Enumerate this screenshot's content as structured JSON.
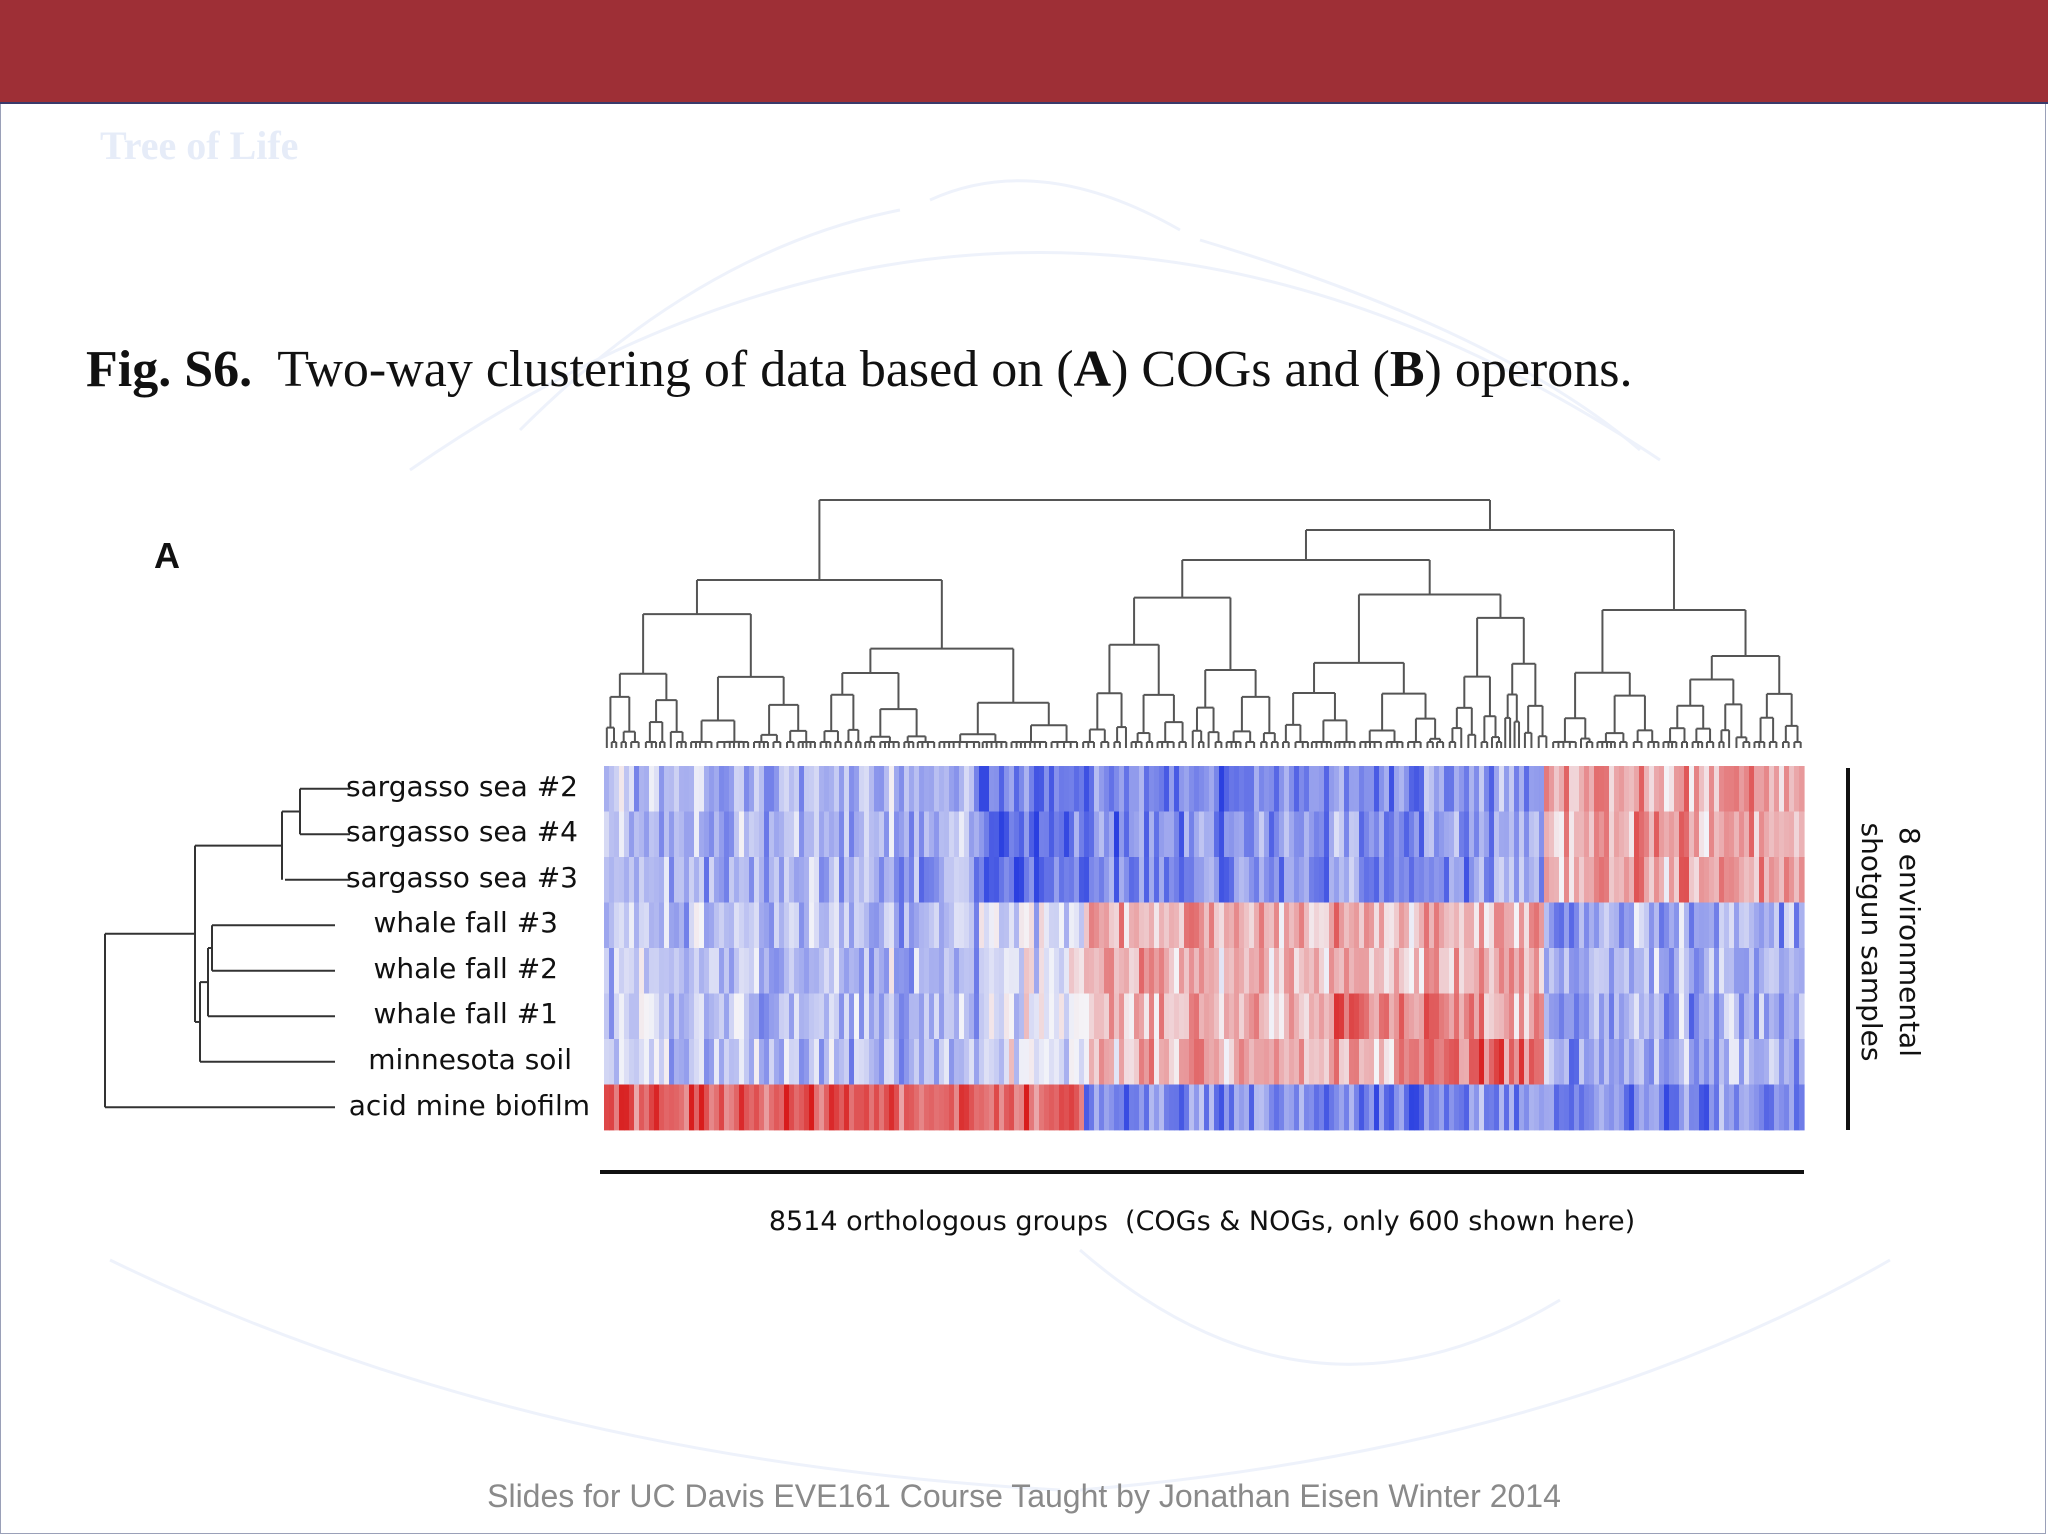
{
  "slide": {
    "background_title": "Tree of Life",
    "caption": {
      "fig_label": "Fig. S6.",
      "text_1": "Two-way clustering of data based on (",
      "bold_a": "A",
      "text_2": ") COGs and (",
      "bold_b": "B",
      "text_3": ") operons."
    },
    "footer": "Slides for UC Davis EVE161 Course Taught by Jonathan Eisen Winter 2014"
  },
  "figure": {
    "panel_label": "A",
    "samples": [
      "sargasso sea #2",
      "sargasso sea #4",
      "sargasso sea #3",
      "whale fall #3",
      "whale fall #2",
      "whale fall #1",
      "minnesota soil",
      "acid mine biofilm"
    ],
    "x_axis_label": "8514 orthologous groups  (COGs & NOGs, only 600 shown here)",
    "side_label_line1": "8 environmental",
    "side_label_line2": "shotgun samples"
  },
  "colors": {
    "top_bar": "#9e2f36",
    "heat_blue": "#2a3fe0",
    "heat_red": "#d81c1c",
    "heat_mid": "#f4f4f8"
  }
}
